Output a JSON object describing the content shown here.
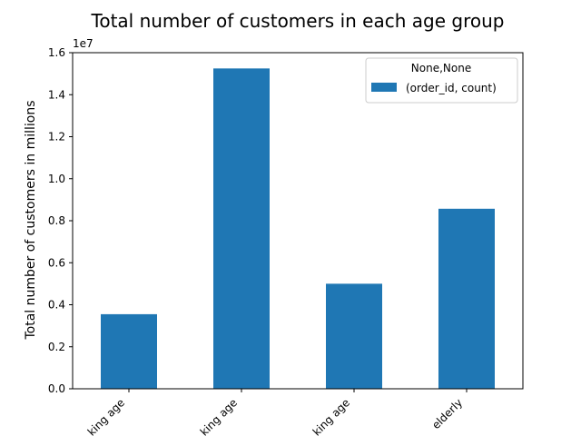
{
  "chart_data": {
    "type": "bar",
    "title": "Total number of customers in each age group",
    "ylabel": "Total number of customers in millions",
    "xlabel": "",
    "offset_text": "1e7",
    "categories": [
      "...king age",
      "...king age",
      "...king age",
      "elderly"
    ],
    "series": [
      {
        "name": "(order_id, count)",
        "values": [
          3550000,
          15250000,
          5000000,
          8570000
        ]
      }
    ],
    "ylim": [
      0,
      16000000
    ],
    "yticks": [
      0,
      2000000,
      4000000,
      6000000,
      8000000,
      10000000,
      12000000,
      14000000,
      16000000
    ],
    "ytick_labels": [
      "0.0",
      "0.2",
      "0.4",
      "0.6",
      "0.8",
      "1.0",
      "1.2",
      "1.4",
      "1.6"
    ],
    "legend_title": "None,None",
    "legend_position": "top-right",
    "grid": false,
    "colors": {
      "bar": "#1f77b4"
    }
  }
}
